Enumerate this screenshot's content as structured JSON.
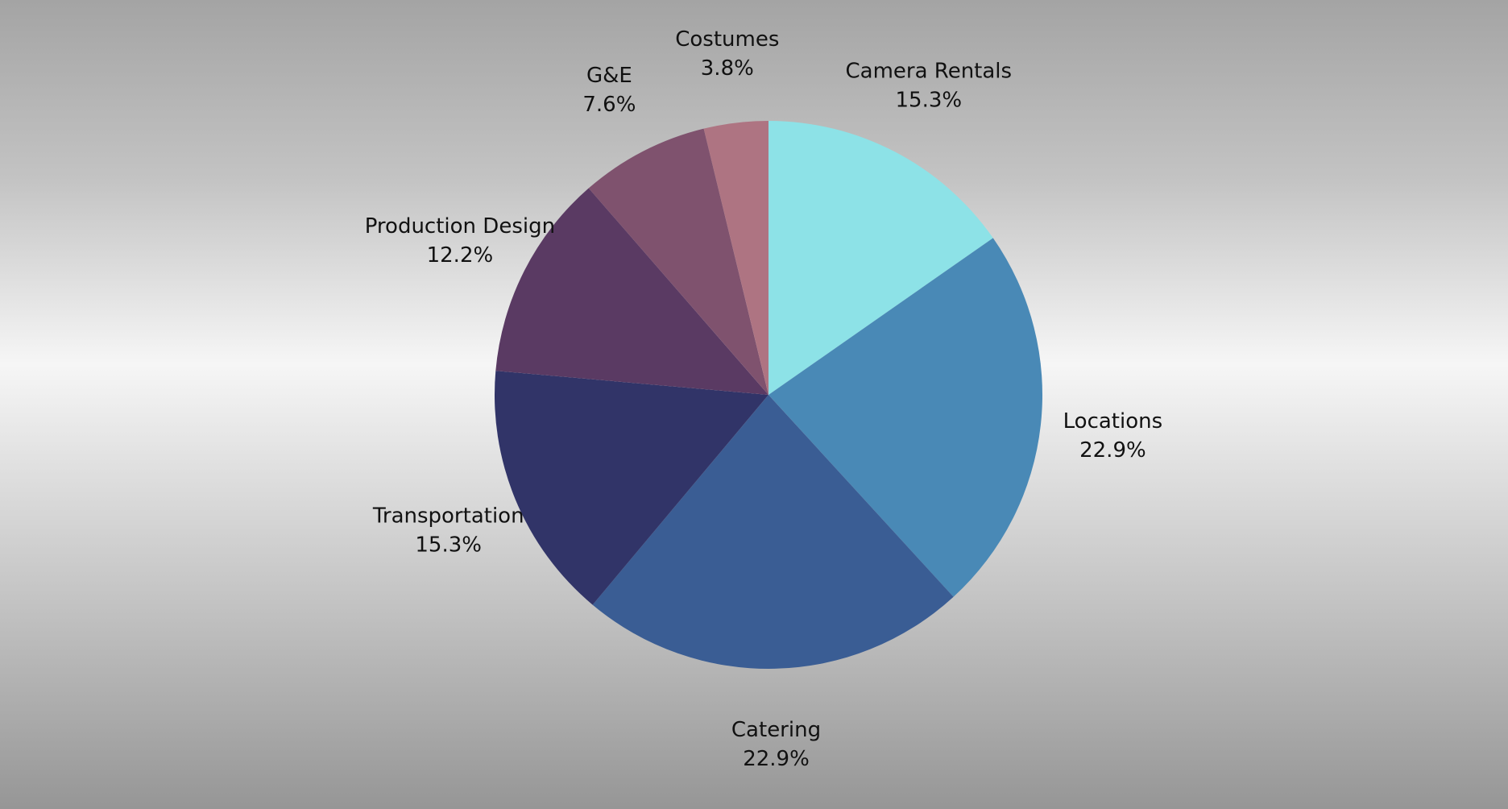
{
  "chart_data": {
    "type": "pie",
    "title": "",
    "start_angle_deg": 0,
    "direction": "clockwise",
    "slices": [
      {
        "label": "Camera Rentals",
        "value": 15.3,
        "display": "15.3%",
        "color": "#8de2e7"
      },
      {
        "label": "Locations",
        "value": 22.9,
        "display": "22.9%",
        "color": "#4989b6"
      },
      {
        "label": "Catering",
        "value": 22.9,
        "display": "22.9%",
        "color": "#3a5d94"
      },
      {
        "label": "Transportation",
        "value": 15.3,
        "display": "15.3%",
        "color": "#313468"
      },
      {
        "label": "Production Design",
        "value": 12.2,
        "display": "12.2%",
        "color": "#5a3a63"
      },
      {
        "label": "G&E",
        "value": 7.6,
        "display": "7.6%",
        "color": "#7f526e"
      },
      {
        "label": "Costumes",
        "value": 3.8,
        "display": "3.8%",
        "color": "#ae7482"
      }
    ]
  }
}
